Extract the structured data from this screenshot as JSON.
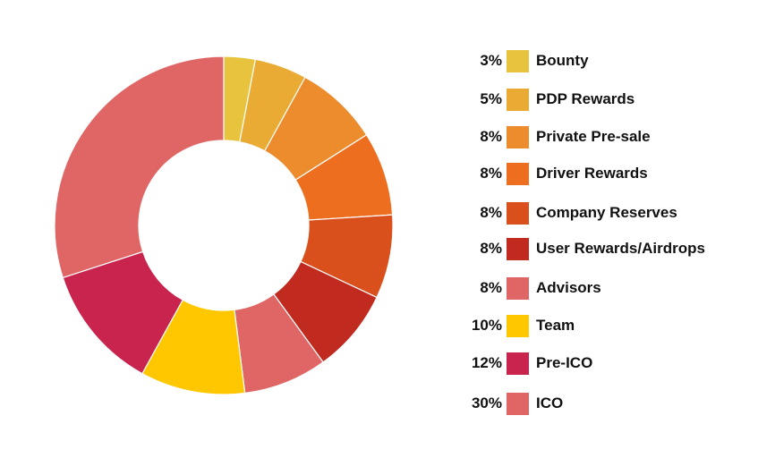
{
  "chart_data": {
    "type": "pie",
    "donut": true,
    "title": "",
    "legend_position": "right",
    "slices": [
      {
        "label": "Bounty",
        "value": 3,
        "pct_label": "3%",
        "color": "#E8C43E"
      },
      {
        "label": "PDP Rewards",
        "value": 5,
        "pct_label": "5%",
        "color": "#EAAB35"
      },
      {
        "label": "Private Pre-sale",
        "value": 8,
        "pct_label": "8%",
        "color": "#EC8C2C"
      },
      {
        "label": "Driver Rewards",
        "value": 8,
        "pct_label": "8%",
        "color": "#EE6E20"
      },
      {
        "label": "Company Reserves",
        "value": 8,
        "pct_label": "8%",
        "color": "#D9501D"
      },
      {
        "label": "User Rewards/Airdrops",
        "value": 8,
        "pct_label": "8%",
        "color": "#C02A1F"
      },
      {
        "label": "Advisors",
        "value": 8,
        "pct_label": "8%",
        "color": "#E06666"
      },
      {
        "label": "Team",
        "value": 10,
        "pct_label": "10%",
        "color": "#FFC700"
      },
      {
        "label": "Pre-ICO",
        "value": 12,
        "pct_label": "12%",
        "color": "#C9244E"
      },
      {
        "label": "ICO",
        "value": 30,
        "pct_label": "30%",
        "color": "#E06666"
      }
    ]
  }
}
